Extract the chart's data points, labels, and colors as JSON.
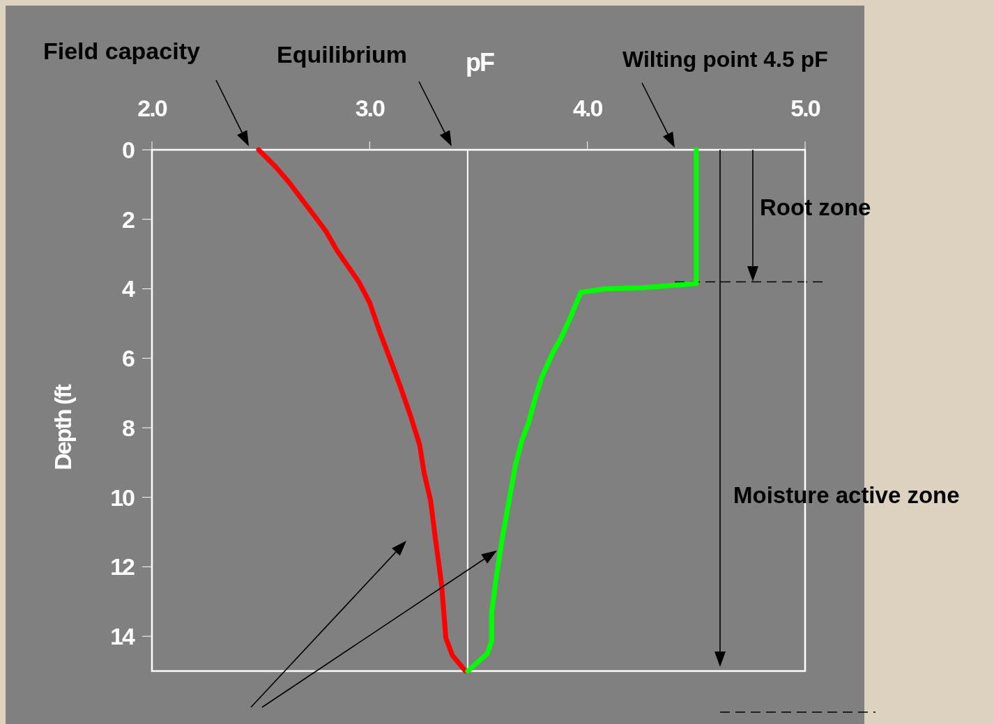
{
  "chart_data": {
    "type": "line",
    "xlabel": "pF",
    "ylabel": "Depth (ft",
    "xlim": [
      2,
      5
    ],
    "xticks": [
      {
        "value": 2,
        "label": "2.0"
      },
      {
        "value": 3,
        "label": "3.0"
      },
      {
        "value": 4,
        "label": "4.0"
      },
      {
        "value": 5,
        "label": "5.0"
      }
    ],
    "ylim": [
      15,
      0
    ],
    "yticks": [
      0,
      2,
      4,
      6,
      8,
      10,
      12,
      14
    ],
    "grid": false,
    "marker": "none",
    "line_style": "solid",
    "series": [
      {
        "color": "#ff0000",
        "x": [
          2.49,
          2.57,
          2.63,
          2.71,
          2.8,
          2.85,
          2.95,
          3.0,
          3.05,
          3.09,
          3.14,
          3.19,
          3.23,
          3.25,
          3.28,
          3.3,
          3.33,
          3.35,
          3.38,
          3.44
        ],
        "values": [
          0,
          0.5,
          0.94,
          1.6,
          2.35,
          2.9,
          3.8,
          4.4,
          5.3,
          5.96,
          6.8,
          7.7,
          8.5,
          9.3,
          10.1,
          11.1,
          12.5,
          14.05,
          14.55,
          15
        ]
      },
      {
        "color": "#00ff00",
        "x": [
          3.45,
          3.54,
          3.56,
          3.56,
          3.58,
          3.61,
          3.63,
          3.65,
          3.67,
          3.7,
          3.73,
          3.76,
          3.79,
          3.84,
          3.88,
          3.92,
          3.97,
          4.08,
          4.25,
          4.39,
          4.5,
          4.5
        ],
        "values": [
          15,
          14.5,
          14.15,
          13.35,
          12.35,
          11.15,
          10.45,
          9.75,
          9.05,
          8.35,
          7.85,
          7.15,
          6.55,
          5.85,
          5.4,
          4.85,
          4.1,
          4.0,
          3.97,
          3.9,
          3.85,
          0
        ]
      }
    ],
    "ref_lines": [
      {
        "axis": "x",
        "value": 3.45,
        "color": "#ffffff",
        "line_style": "solid"
      },
      {
        "axis": "y",
        "value": 3.8,
        "color": "#000000",
        "line_style": "dashed"
      }
    ],
    "annotations": [
      "Field capacity",
      "Equilibrium",
      "Wilting point 4.5 pF",
      "Root zone",
      "Moisture active zone"
    ]
  }
}
